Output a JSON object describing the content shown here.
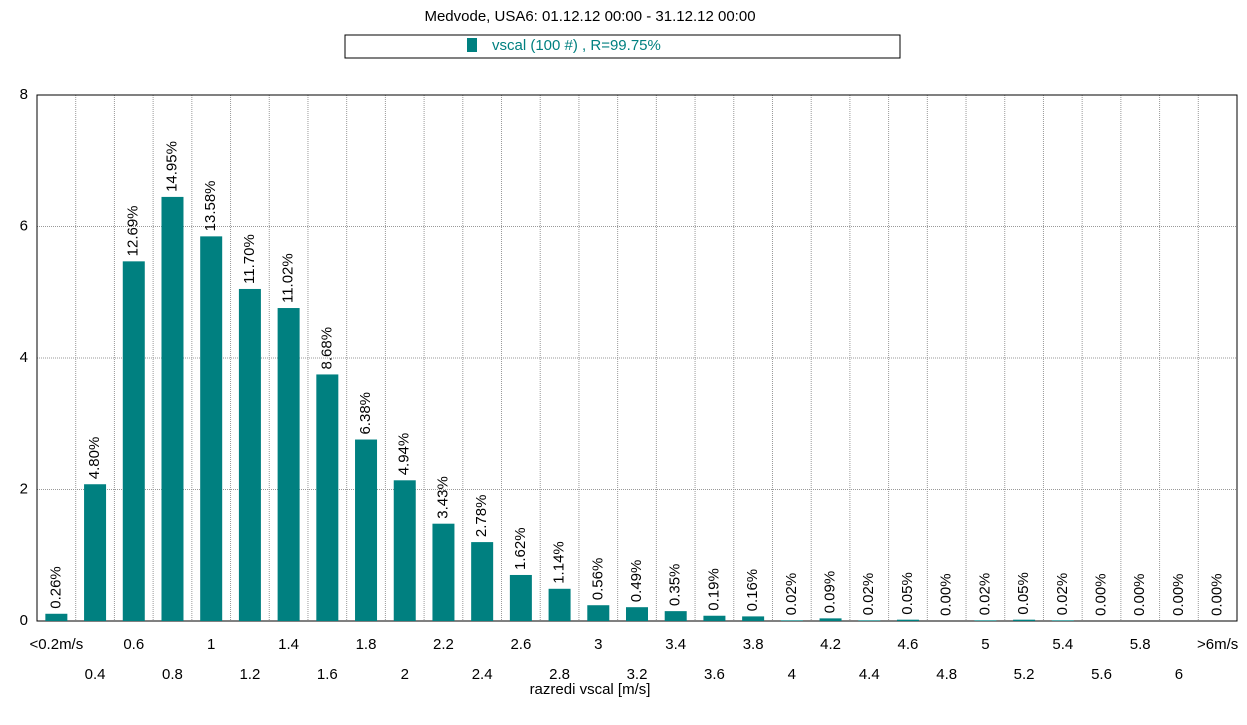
{
  "chart_data": {
    "type": "bar",
    "title": "Medvode, USA6: 01.12.12 00:00 - 31.12.12 00:00",
    "legend": "vscal (100 #) , R=99.75%",
    "x_label": "razredi vscal [m/s]",
    "color": "#008080",
    "categories": [
      "<0.2m/s",
      "0.4",
      "0.6",
      "0.8",
      "1",
      "1.2",
      "1.4",
      "1.6",
      "1.8",
      "2",
      "2.2",
      "2.4",
      "2.6",
      "2.8",
      "3",
      "3.2",
      "3.4",
      "3.6",
      "3.8",
      "4",
      "4.2",
      "4.4",
      "4.6",
      "4.8",
      "5",
      "5.2",
      "5.4",
      "5.6",
      "5.8",
      "6",
      ">6m/s"
    ],
    "values": [
      0.11,
      2.08,
      5.47,
      6.45,
      5.85,
      5.05,
      4.76,
      3.75,
      2.76,
      2.14,
      1.48,
      1.2,
      0.7,
      0.49,
      0.24,
      0.21,
      0.15,
      0.08,
      0.07,
      0.01,
      0.04,
      0.01,
      0.02,
      0,
      0.01,
      0.02,
      0.01,
      0,
      0,
      0,
      0
    ],
    "percent_labels": [
      "0.26%",
      "4.80%",
      "12.69%",
      "14.95%",
      "13.58%",
      "11.70%",
      "11.02%",
      "8.68%",
      "6.38%",
      "4.94%",
      "3.43%",
      "2.78%",
      "1.62%",
      "1.14%",
      "0.56%",
      "0.49%",
      "0.35%",
      "0.19%",
      "0.16%",
      "0.02%",
      "0.09%",
      "0.02%",
      "0.05%",
      "0.00%",
      "0.02%",
      "0.05%",
      "0.02%",
      "0.00%",
      "0.00%",
      "0.00%",
      "0.00%"
    ],
    "ylim": [
      0,
      8
    ],
    "yticks": [
      0,
      2,
      4,
      6,
      8
    ],
    "grid": true
  }
}
